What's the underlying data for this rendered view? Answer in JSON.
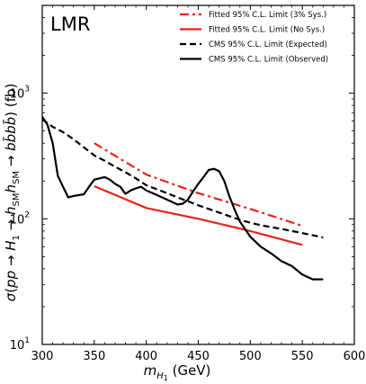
{
  "chart_data": {
    "type": "line",
    "region_label": "LMR",
    "xlabel": "m_{H_1} (GeV)",
    "ylabel": "σ(pp → H_1 → h_SM h_SM → b b̄ b b̄) (fb)",
    "xlim": [
      300,
      600
    ],
    "ylim": [
      10,
      5000
    ],
    "yscale": "log",
    "x_ticks": [
      300,
      350,
      400,
      450,
      500,
      550,
      600
    ],
    "y_ticks": [
      {
        "value": 10,
        "base": "10",
        "exp": "1"
      },
      {
        "value": 100,
        "base": "10",
        "exp": "2"
      },
      {
        "value": 1000,
        "base": "10",
        "exp": "3"
      }
    ],
    "legend_position": "top-right",
    "series": [
      {
        "name": "Fitted 95% C.L. Limit (3% Sys.)",
        "color": "#e8231b",
        "style": "dashdot",
        "x": [
          350,
          400,
          450,
          500,
          550
        ],
        "y": [
          400,
          225,
          160,
          120,
          88
        ]
      },
      {
        "name": "Fitted 95% C.L. Limit (No Sys.)",
        "color": "#e8231b",
        "style": "solid",
        "x": [
          350,
          400,
          450,
          500,
          550
        ],
        "y": [
          182,
          122,
          100,
          80,
          62
        ]
      },
      {
        "name": "CMS 95% C.L. Limit (Expected)",
        "color": "#000000",
        "style": "dashed",
        "x": [
          300,
          310,
          320,
          330,
          340,
          350,
          360,
          370,
          380,
          390,
          400,
          410,
          420,
          430,
          440,
          450,
          460,
          470,
          480,
          490,
          500,
          510,
          520,
          530,
          540,
          550,
          560,
          570
        ],
        "y": [
          620,
          540,
          490,
          430,
          370,
          320,
          290,
          260,
          235,
          210,
          185,
          172,
          160,
          148,
          138,
          128,
          120,
          112,
          105,
          98,
          93,
          89,
          86,
          83,
          80,
          77,
          74,
          71
        ]
      },
      {
        "name": "CMS 95% C.L. Limit (Observed)",
        "color": "#000000",
        "style": "solid",
        "x": [
          300,
          305,
          310,
          315,
          320,
          325,
          330,
          340,
          345,
          350,
          355,
          360,
          365,
          370,
          375,
          380,
          385,
          390,
          395,
          400,
          410,
          420,
          430,
          435,
          440,
          445,
          450,
          455,
          460,
          465,
          470,
          475,
          480,
          485,
          490,
          500,
          510,
          520,
          530,
          540,
          550,
          560,
          570
        ],
        "y": [
          650,
          560,
          400,
          220,
          180,
          148,
          152,
          157,
          180,
          205,
          210,
          215,
          205,
          190,
          180,
          158,
          168,
          175,
          180,
          168,
          155,
          142,
          130,
          132,
          142,
          165,
          190,
          215,
          245,
          250,
          240,
          200,
          150,
          118,
          95,
          72,
          60,
          53,
          46,
          42,
          36,
          33,
          33
        ]
      }
    ]
  }
}
